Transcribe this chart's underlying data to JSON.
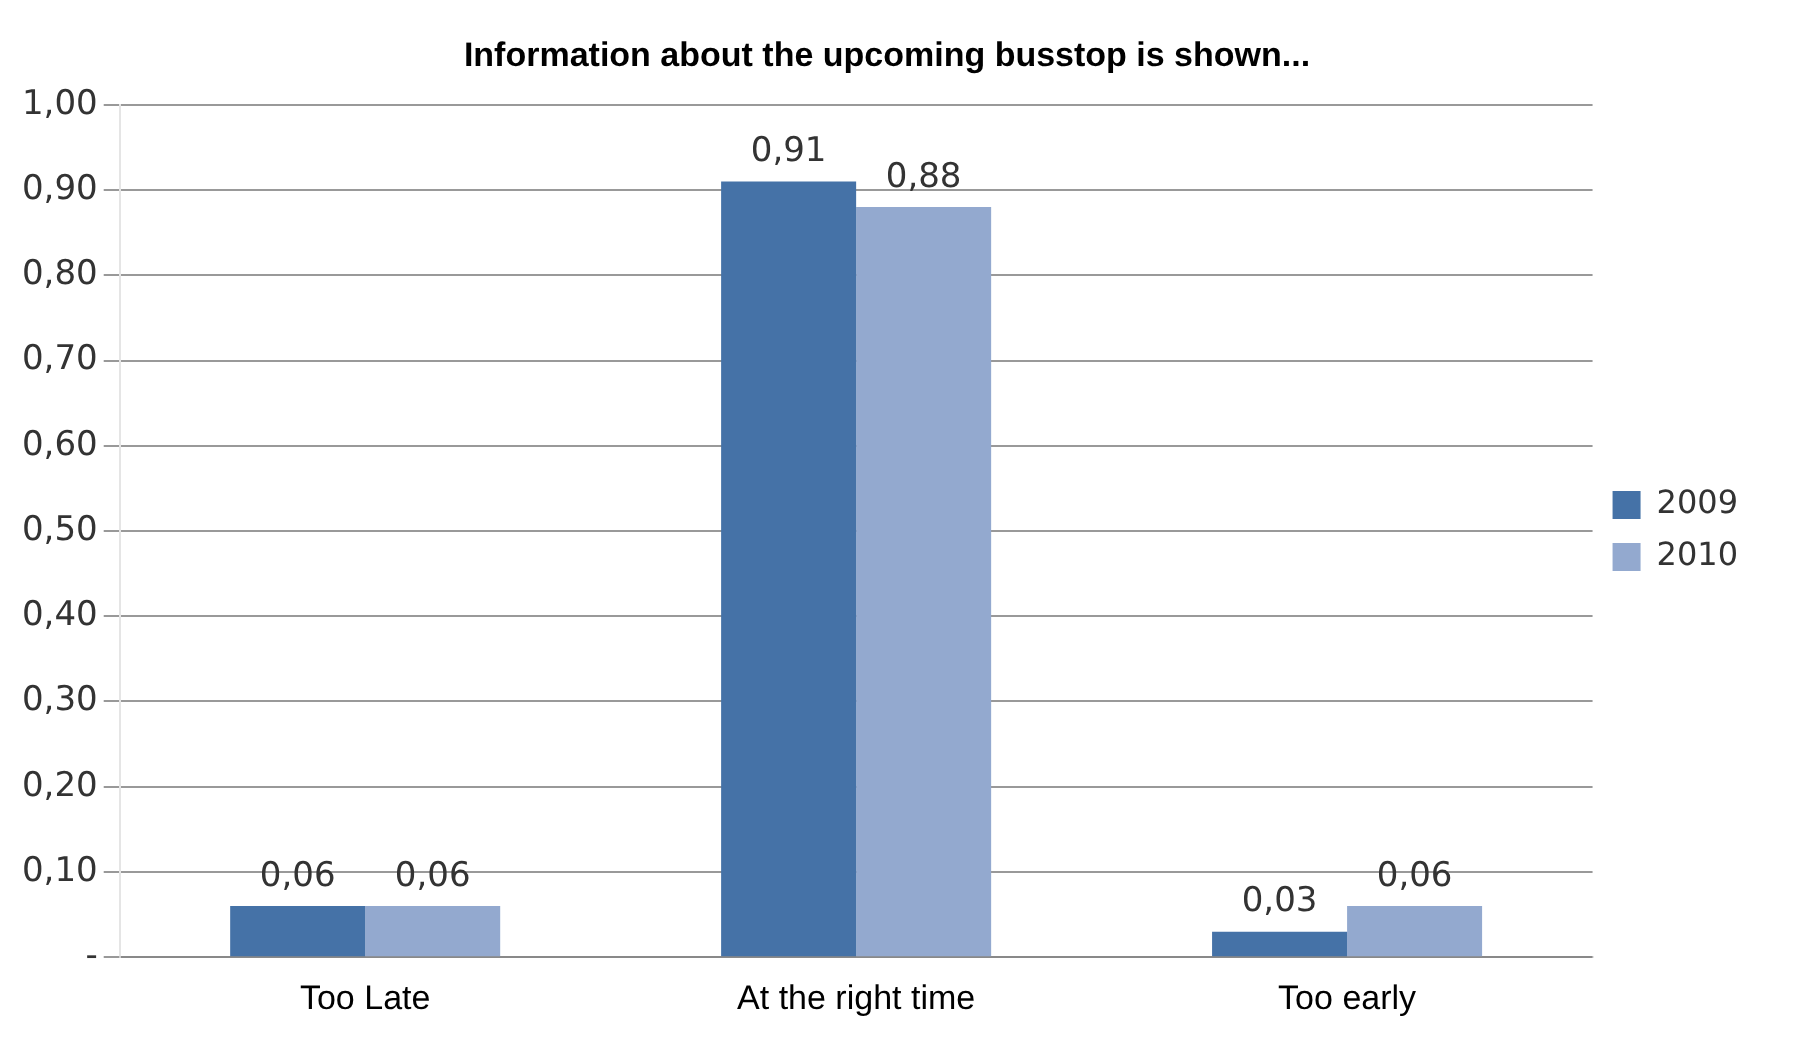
{
  "chart_data": {
    "type": "bar",
    "title": "Information about the upcoming busstop is shown...",
    "categories": [
      "Too Late",
      "At the right time",
      "Too early"
    ],
    "series": [
      {
        "name": "2009",
        "color": "#4572a7",
        "values": [
          0.06,
          0.91,
          0.03
        ],
        "value_labels": [
          "0,06",
          "0,91",
          "0,03"
        ]
      },
      {
        "name": "2010",
        "color": "#93a9cf",
        "values": [
          0.06,
          0.88,
          0.06
        ],
        "value_labels": [
          "0,06",
          "0,88",
          "0,06"
        ]
      }
    ],
    "ylim": [
      0,
      1
    ],
    "yticks": [
      {
        "value": 0,
        "label": "-"
      },
      {
        "value": 0.1,
        "label": "0,10"
      },
      {
        "value": 0.2,
        "label": "0,20"
      },
      {
        "value": 0.3,
        "label": "0,30"
      },
      {
        "value": 0.4,
        "label": "0,40"
      },
      {
        "value": 0.5,
        "label": "0,50"
      },
      {
        "value": 0.6,
        "label": "0,60"
      },
      {
        "value": 0.7,
        "label": "0,70"
      },
      {
        "value": 0.8,
        "label": "0,80"
      },
      {
        "value": 0.9,
        "label": "0,90"
      },
      {
        "value": 1,
        "label": "1,00"
      }
    ],
    "grid": "y",
    "legend": "right"
  }
}
